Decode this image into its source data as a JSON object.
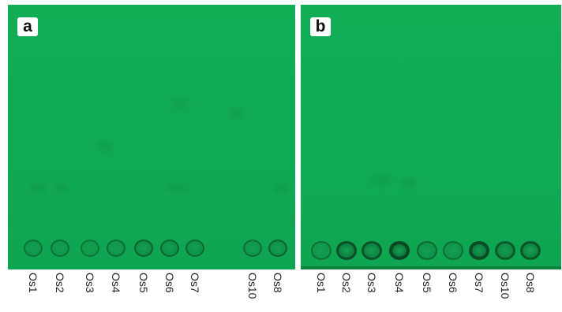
{
  "panels": [
    {
      "label": "a",
      "lanes": [
        "Os1",
        "Os2",
        "Os3",
        "Os4",
        "Os5",
        "Os6",
        "Os7",
        "Os10",
        "Os8"
      ]
    },
    {
      "label": "b",
      "lanes": [
        "Os1",
        "Os2",
        "Os3",
        "Os4",
        "Os5",
        "Os6",
        "Os7",
        "Os10",
        "Os8"
      ]
    }
  ],
  "colors": {
    "plate_green": "#10aa54",
    "spot_dark": "#0b4d2a",
    "label_background": "#ffffff"
  }
}
